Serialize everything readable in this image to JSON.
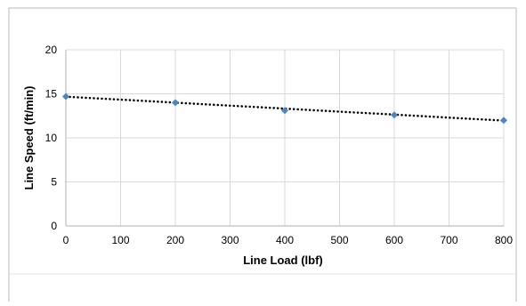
{
  "colors": {
    "marker": "#4a86c5",
    "trendline": "#000000",
    "gridline": "#d9d9d9",
    "axis": "#bfbfbf",
    "frame": "#d0d0d0"
  },
  "chart_data": {
    "type": "scatter",
    "title": "",
    "xlabel": "Line Load (lbf)",
    "ylabel": "Line Speed (ft/min)",
    "xlim": [
      0,
      800
    ],
    "ylim": [
      0,
      20
    ],
    "x_ticks": [
      "0",
      "100",
      "200",
      "300",
      "400",
      "500",
      "600",
      "700",
      "800"
    ],
    "y_ticks": [
      "0",
      "5",
      "10",
      "15",
      "20"
    ],
    "grid": true,
    "legend": "none",
    "series": [
      {
        "x": [
          0,
          200,
          400,
          600,
          800
        ],
        "y": [
          14.7,
          14.0,
          13.1,
          12.6,
          12.0
        ],
        "marker": "diamond"
      }
    ],
    "trendline": {
      "type": "linear",
      "style": "dotted",
      "x": [
        0,
        800
      ],
      "y": [
        14.68,
        11.96
      ]
    }
  }
}
